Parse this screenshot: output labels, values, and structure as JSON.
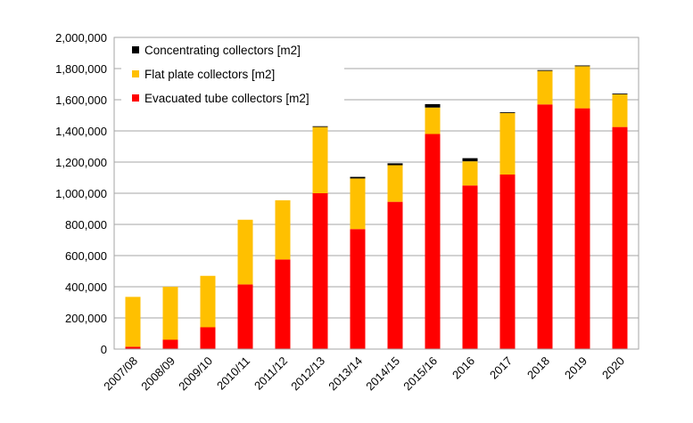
{
  "chart_data": {
    "type": "bar",
    "stacked": true,
    "categories": [
      "2007/08",
      "2008/09",
      "2009/10",
      "2010/11",
      "2011/12",
      "2012/13",
      "2013/14",
      "2014/15",
      "2015/16",
      "2016",
      "2017",
      "2018",
      "2019",
      "2020"
    ],
    "series": [
      {
        "name": "Evacuated tube collectors [m2]",
        "color": "#ff0000",
        "values": [
          15000,
          60000,
          140000,
          415000,
          575000,
          1000000,
          770000,
          945000,
          1380000,
          1050000,
          1120000,
          1570000,
          1545000,
          1425000
        ]
      },
      {
        "name": "Flat plate collectors [m2]",
        "color": "#ffc000",
        "values": [
          320000,
          340000,
          330000,
          415000,
          380000,
          425000,
          325000,
          235000,
          170000,
          155000,
          395000,
          215000,
          270000,
          210000
        ]
      },
      {
        "name": "Concentrating collectors [m2]",
        "color": "#000000",
        "values": [
          0,
          0,
          0,
          0,
          0,
          5000,
          10000,
          12000,
          22000,
          20000,
          5000,
          5000,
          5000,
          5000
        ]
      }
    ],
    "legend_order": [
      2,
      1,
      0
    ],
    "legend_position": "top-left",
    "title": "",
    "xlabel": "",
    "ylabel": "",
    "ylim": [
      0,
      2000000
    ],
    "yticks": [
      0,
      200000,
      400000,
      600000,
      800000,
      1000000,
      1200000,
      1400000,
      1600000,
      1800000,
      2000000
    ],
    "ytick_labels": [
      "0",
      "200,000",
      "400,000",
      "600,000",
      "800,000",
      "1,000,000",
      "1,200,000",
      "1,400,000",
      "1,600,000",
      "1,800,000",
      "2,000,000"
    ],
    "grid": true,
    "xtick_rotation": -45
  }
}
